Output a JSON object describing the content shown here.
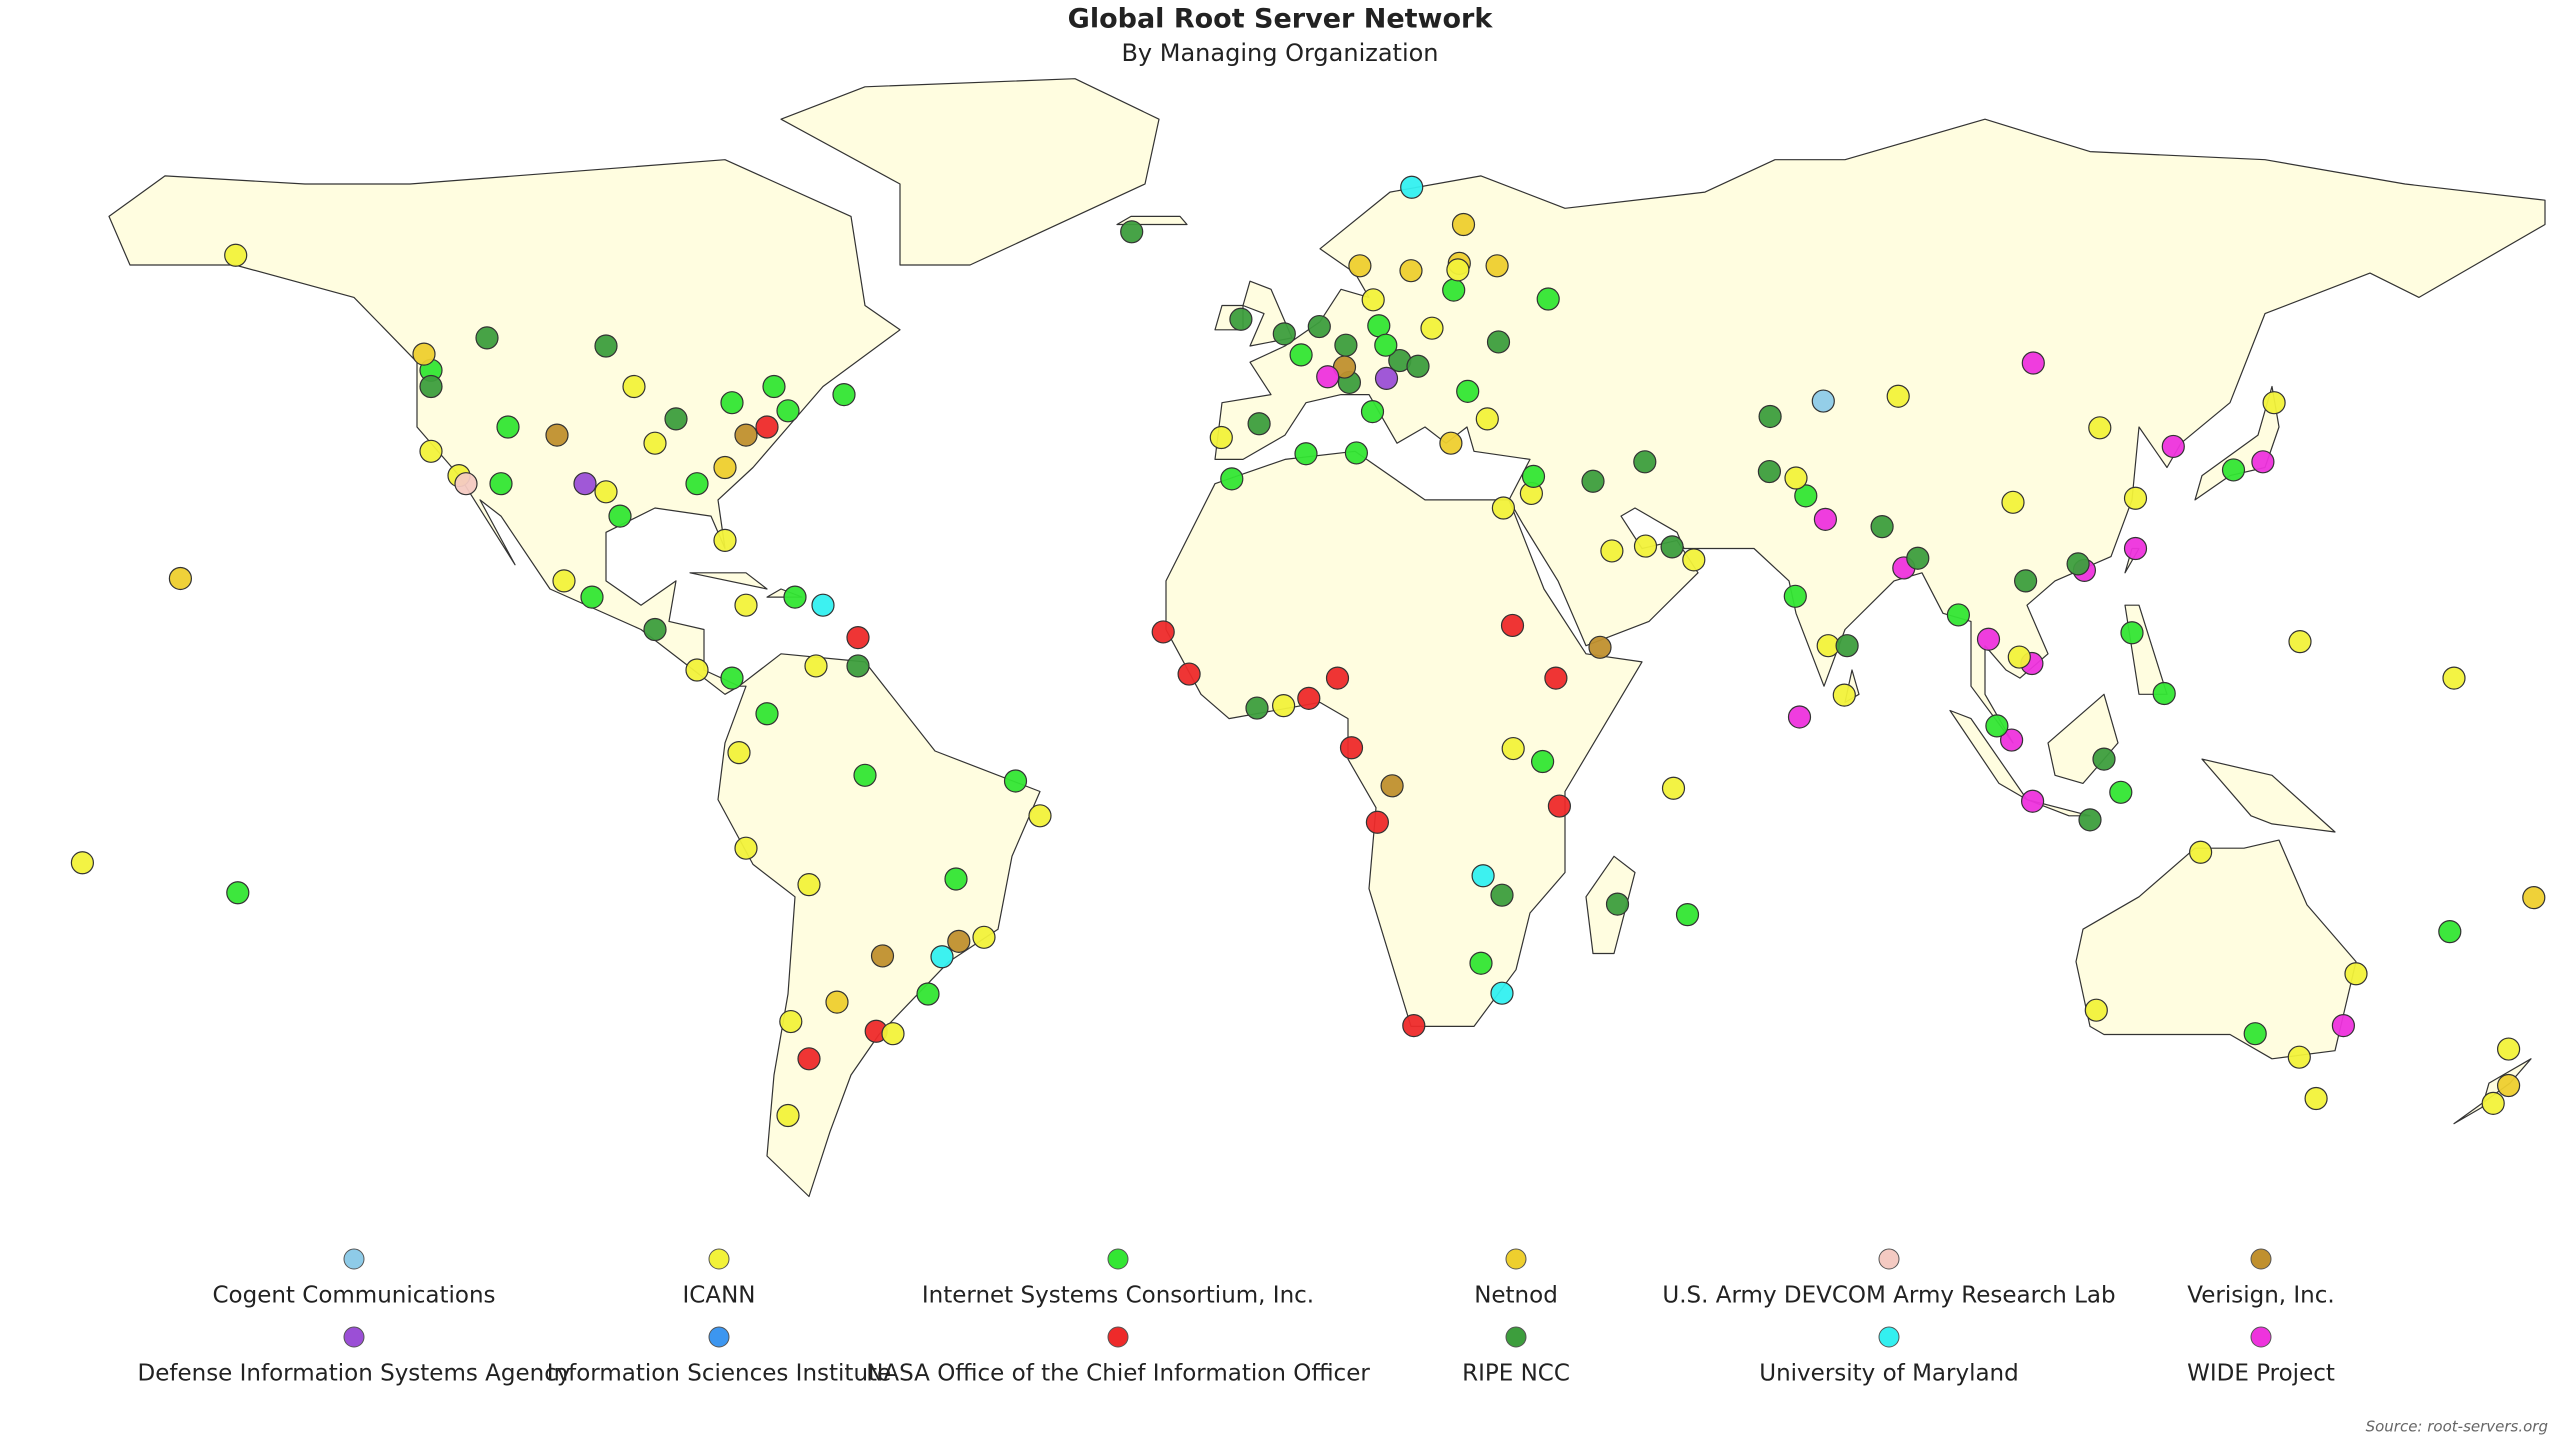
{
  "title": "Global Root Server Network",
  "subtitle": "By Managing Organization",
  "source": "Source: root-servers.org",
  "organizations": [
    {
      "name": "Cogent Communications",
      "color": "#8ecbe8"
    },
    {
      "name": "ICANN",
      "color": "#f2f23a"
    },
    {
      "name": "Internet Systems Consortium, Inc.",
      "color": "#33e633"
    },
    {
      "name": "Netnod",
      "color": "#eecf2e"
    },
    {
      "name": "U.S. Army DEVCOM Army Research Lab",
      "color": "#f4cac2"
    },
    {
      "name": "Verisign, Inc.",
      "color": "#c0902e"
    },
    {
      "name": "Defense Information Systems Agency",
      "color": "#9b4fd6"
    },
    {
      "name": "Information Sciences Institute",
      "color": "#3c96f0"
    },
    {
      "name": "NASA Office of the Chief Information Officer",
      "color": "#ee2a2a"
    },
    {
      "name": "RIPE NCC",
      "color": "#3d9e3d"
    },
    {
      "name": "University of Maryland",
      "color": "#33f0f0"
    },
    {
      "name": "WIDE Project",
      "color": "#ee33dd"
    }
  ],
  "sites": [
    {
      "lon": -122,
      "lat": 37,
      "org": 1
    },
    {
      "lon": -118,
      "lat": 34,
      "org": 1
    },
    {
      "lon": -122,
      "lat": 47,
      "org": 2
    },
    {
      "lon": -112,
      "lat": 33,
      "org": 2
    },
    {
      "lon": -104,
      "lat": 39,
      "org": 5
    },
    {
      "lon": -97,
      "lat": 32,
      "org": 1
    },
    {
      "lon": -95,
      "lat": 29,
      "org": 2
    },
    {
      "lon": -90,
      "lat": 38,
      "org": 1
    },
    {
      "lon": -87,
      "lat": 41,
      "org": 9
    },
    {
      "lon": -84,
      "lat": 33,
      "org": 2
    },
    {
      "lon": -80,
      "lat": 26,
      "org": 1
    },
    {
      "lon": -77,
      "lat": 39,
      "org": 5
    },
    {
      "lon": -74,
      "lat": 40,
      "org": 8
    },
    {
      "lon": -71,
      "lat": 42,
      "org": 2
    },
    {
      "lon": -93,
      "lat": 45,
      "org": 1
    },
    {
      "lon": -111,
      "lat": 40,
      "org": 2
    },
    {
      "lon": -80,
      "lat": 35,
      "org": 3
    },
    {
      "lon": -117,
      "lat": 33,
      "org": 4
    },
    {
      "lon": -122,
      "lat": 45,
      "org": 9
    },
    {
      "lon": -100,
      "lat": 33,
      "org": 6
    },
    {
      "lon": -79,
      "lat": 43,
      "org": 2
    },
    {
      "lon": -123,
      "lat": 49,
      "org": 3
    },
    {
      "lon": -114,
      "lat": 51,
      "org": 9
    },
    {
      "lon": -97,
      "lat": 50,
      "org": 9
    },
    {
      "lon": -73,
      "lat": 45,
      "org": 2
    },
    {
      "lon": -63,
      "lat": 44,
      "org": 2
    },
    {
      "lon": -149.9,
      "lat": 61.2,
      "org": 1
    },
    {
      "lon": -99,
      "lat": 19,
      "org": 2
    },
    {
      "lon": -103,
      "lat": 21,
      "org": 1
    },
    {
      "lon": -90,
      "lat": 15,
      "org": 9
    },
    {
      "lon": -84,
      "lat": 10,
      "org": 1
    },
    {
      "lon": -79,
      "lat": 9,
      "org": 2
    },
    {
      "lon": -66,
      "lat": 18,
      "org": 10
    },
    {
      "lon": -77,
      "lat": 18,
      "org": 1
    },
    {
      "lon": -70,
      "lat": 19,
      "org": 2
    },
    {
      "lon": -61,
      "lat": 14,
      "org": 8
    },
    {
      "lon": -61,
      "lat": 10.5,
      "org": 9
    },
    {
      "lon": -74,
      "lat": 4.6,
      "org": 2
    },
    {
      "lon": -67,
      "lat": 10.5,
      "org": 1
    },
    {
      "lon": -78,
      "lat": -0.2,
      "org": 1
    },
    {
      "lon": -77,
      "lat": -12,
      "org": 1
    },
    {
      "lon": -68,
      "lat": -16.5,
      "org": 1
    },
    {
      "lon": -47,
      "lat": -15.8,
      "org": 2
    },
    {
      "lon": -43,
      "lat": -23,
      "org": 1
    },
    {
      "lon": -46.6,
      "lat": -23.5,
      "org": 5
    },
    {
      "lon": -49,
      "lat": -25.4,
      "org": 10
    },
    {
      "lon": -51,
      "lat": -30,
      "org": 2
    },
    {
      "lon": -58.4,
      "lat": -34.6,
      "org": 8
    },
    {
      "lon": -70.6,
      "lat": -33.4,
      "org": 1
    },
    {
      "lon": -56,
      "lat": -34.9,
      "org": 1
    },
    {
      "lon": -38.5,
      "lat": -3.7,
      "org": 2
    },
    {
      "lon": -35,
      "lat": -8,
      "org": 1
    },
    {
      "lon": -60,
      "lat": -3,
      "org": 2
    },
    {
      "lon": -57.5,
      "lat": -25.3,
      "org": 5
    },
    {
      "lon": -68,
      "lat": -38,
      "org": 8
    },
    {
      "lon": -71,
      "lat": -45,
      "org": 1
    },
    {
      "lon": -64,
      "lat": -31,
      "org": 3
    },
    {
      "lon": -0.1,
      "lat": 51.5,
      "org": 9
    },
    {
      "lon": 2.3,
      "lat": 48.9,
      "org": 2
    },
    {
      "lon": 4.9,
      "lat": 52.4,
      "org": 9
    },
    {
      "lon": 8.7,
      "lat": 50.1,
      "org": 9
    },
    {
      "lon": 13.4,
      "lat": 52.5,
      "org": 2
    },
    {
      "lon": 18,
      "lat": 59.3,
      "org": 3
    },
    {
      "lon": 10.7,
      "lat": 59.9,
      "org": 3
    },
    {
      "lon": 24.9,
      "lat": 60.2,
      "org": 3
    },
    {
      "lon": 12.6,
      "lat": 55.7,
      "org": 1
    },
    {
      "lon": 16.4,
      "lat": 48.2,
      "org": 9
    },
    {
      "lon": 14.4,
      "lat": 50.1,
      "org": 2
    },
    {
      "lon": 21,
      "lat": 52.2,
      "org": 1
    },
    {
      "lon": 19,
      "lat": 47.5,
      "org": 9
    },
    {
      "lon": 12.5,
      "lat": 41.9,
      "org": 2
    },
    {
      "lon": 9.2,
      "lat": 45.5,
      "org": 9
    },
    {
      "lon": -3.7,
      "lat": 40.4,
      "org": 9
    },
    {
      "lon": -9.1,
      "lat": 38.7,
      "org": 1
    },
    {
      "lon": 8.5,
      "lat": 47.4,
      "org": 5
    },
    {
      "lon": 6.1,
      "lat": 46.2,
      "org": 11
    },
    {
      "lon": 26.1,
      "lat": 44.4,
      "org": 2
    },
    {
      "lon": 23.7,
      "lat": 38,
      "org": 3
    },
    {
      "lon": 28.9,
      "lat": 41,
      "org": 1
    },
    {
      "lon": 30.5,
      "lat": 50.5,
      "org": 9
    },
    {
      "lon": 37.6,
      "lat": 55.8,
      "org": 2
    },
    {
      "lon": 30.3,
      "lat": 59.9,
      "org": 3
    },
    {
      "lon": 24.1,
      "lat": 56.9,
      "org": 2
    },
    {
      "lon": -6.3,
      "lat": 53.3,
      "org": 9
    },
    {
      "lon": -21.9,
      "lat": 64.1,
      "org": 9
    },
    {
      "lon": 18.1,
      "lat": 69.6,
      "org": 10
    },
    {
      "lon": 25.5,
      "lat": 65,
      "org": 3
    },
    {
      "lon": 14.5,
      "lat": 46,
      "org": 6
    },
    {
      "lon": 24.7,
      "lat": 59.4,
      "org": 1
    },
    {
      "lon": -7.6,
      "lat": 33.6,
      "org": 2
    },
    {
      "lon": 3,
      "lat": 36.7,
      "org": 2
    },
    {
      "lon": 10.2,
      "lat": 36.8,
      "org": 2
    },
    {
      "lon": 31.2,
      "lat": 30,
      "org": 1
    },
    {
      "lon": -17.4,
      "lat": 14.7,
      "org": 8
    },
    {
      "lon": -13.7,
      "lat": 9.5,
      "org": 8
    },
    {
      "lon": -4,
      "lat": 5.3,
      "org": 9
    },
    {
      "lon": 3.4,
      "lat": 6.5,
      "org": 8
    },
    {
      "lon": -0.2,
      "lat": 5.6,
      "org": 1
    },
    {
      "lon": 7.5,
      "lat": 9,
      "org": 8
    },
    {
      "lon": 32.5,
      "lat": 15.5,
      "org": 8
    },
    {
      "lon": 38.7,
      "lat": 9,
      "org": 8
    },
    {
      "lon": 36.8,
      "lat": -1.3,
      "org": 2
    },
    {
      "lon": 39.2,
      "lat": -6.8,
      "org": 8
    },
    {
      "lon": 32.6,
      "lat": 0.3,
      "org": 1
    },
    {
      "lon": 15.3,
      "lat": -4.3,
      "org": 5
    },
    {
      "lon": 13.2,
      "lat": -8.8,
      "org": 8
    },
    {
      "lon": 28.3,
      "lat": -15.4,
      "org": 10
    },
    {
      "lon": 31,
      "lat": -17.8,
      "org": 9
    },
    {
      "lon": 28,
      "lat": -26.2,
      "org": 2
    },
    {
      "lon": 18.4,
      "lat": -33.9,
      "org": 8
    },
    {
      "lon": 31,
      "lat": -29.9,
      "org": 10
    },
    {
      "lon": 47.5,
      "lat": -18.9,
      "org": 9
    },
    {
      "lon": 57.5,
      "lat": -20.2,
      "org": 2
    },
    {
      "lon": 55.5,
      "lat": -4.6,
      "org": 1
    },
    {
      "lon": 9.5,
      "lat": 0.4,
      "org": 8
    },
    {
      "lon": 35.2,
      "lat": 31.8,
      "org": 1
    },
    {
      "lon": 35.5,
      "lat": 33.9,
      "org": 2
    },
    {
      "lon": 44,
      "lat": 33.3,
      "org": 9
    },
    {
      "lon": 51.4,
      "lat": 35.7,
      "org": 9
    },
    {
      "lon": 51.5,
      "lat": 25.3,
      "org": 1
    },
    {
      "lon": 55.3,
      "lat": 25.2,
      "org": 9
    },
    {
      "lon": 46.7,
      "lat": 24.7,
      "org": 1
    },
    {
      "lon": 58.4,
      "lat": 23.6,
      "org": 1
    },
    {
      "lon": 45,
      "lat": 12.8,
      "org": 5
    },
    {
      "lon": 69.2,
      "lat": 34.5,
      "org": 9
    },
    {
      "lon": 74.4,
      "lat": 31.5,
      "org": 2
    },
    {
      "lon": 73,
      "lat": 33.7,
      "org": 1
    },
    {
      "lon": 77.2,
      "lat": 28.6,
      "org": 11
    },
    {
      "lon": 72.9,
      "lat": 19.1,
      "org": 2
    },
    {
      "lon": 77.6,
      "lat": 13,
      "org": 1
    },
    {
      "lon": 80.3,
      "lat": 13,
      "org": 9
    },
    {
      "lon": 88.4,
      "lat": 22.6,
      "org": 11
    },
    {
      "lon": 90.4,
      "lat": 23.8,
      "org": 9
    },
    {
      "lon": 85.3,
      "lat": 27.7,
      "org": 9
    },
    {
      "lon": 79.9,
      "lat": 6.9,
      "org": 1
    },
    {
      "lon": 100.5,
      "lat": 13.8,
      "org": 11
    },
    {
      "lon": 106.7,
      "lat": 10.8,
      "org": 11
    },
    {
      "lon": 105.8,
      "lat": 21,
      "org": 9
    },
    {
      "lon": 103.8,
      "lat": 1.35,
      "org": 11
    },
    {
      "lon": 101.7,
      "lat": 3.1,
      "org": 2
    },
    {
      "lon": 106.8,
      "lat": -6.2,
      "org": 11
    },
    {
      "lon": 115,
      "lat": -8.5,
      "org": 9
    },
    {
      "lon": 121,
      "lat": 14.6,
      "org": 2
    },
    {
      "lon": 114.2,
      "lat": 22.3,
      "org": 11
    },
    {
      "lon": 121.5,
      "lat": 25,
      "org": 11
    },
    {
      "lon": 116.4,
      "lat": 39.9,
      "org": 1
    },
    {
      "lon": 121.5,
      "lat": 31.2,
      "org": 1
    },
    {
      "lon": 126.9,
      "lat": 37.6,
      "org": 11
    },
    {
      "lon": 139.7,
      "lat": 35.7,
      "org": 11
    },
    {
      "lon": 135.5,
      "lat": 34.7,
      "org": 2
    },
    {
      "lon": 141.3,
      "lat": 43,
      "org": 1
    },
    {
      "lon": 106.9,
      "lat": 47.9,
      "org": 11
    },
    {
      "lon": 76.9,
      "lat": 43.2,
      "org": 0
    },
    {
      "lon": 69.3,
      "lat": 41.3,
      "org": 9
    },
    {
      "lon": 87.6,
      "lat": 43.8,
      "org": 1
    },
    {
      "lon": 104,
      "lat": 30.7,
      "org": 1
    },
    {
      "lon": 113.3,
      "lat": 23.1,
      "org": 9
    },
    {
      "lon": 73.5,
      "lat": 4.2,
      "org": 11
    },
    {
      "lon": 96.2,
      "lat": 16.8,
      "org": 2
    },
    {
      "lon": 104.9,
      "lat": 11.6,
      "org": 1
    },
    {
      "lon": 125.6,
      "lat": 7.1,
      "org": 2
    },
    {
      "lon": 119.4,
      "lat": -5.1,
      "org": 2
    },
    {
      "lon": 117,
      "lat": -1,
      "org": 9
    },
    {
      "lon": 151.2,
      "lat": -33.9,
      "org": 11
    },
    {
      "lon": 144.9,
      "lat": -37.8,
      "org": 1
    },
    {
      "lon": 153,
      "lat": -27.5,
      "org": 1
    },
    {
      "lon": 115.9,
      "lat": -32,
      "org": 1
    },
    {
      "lon": 138.6,
      "lat": -34.9,
      "org": 2
    },
    {
      "lon": 147.3,
      "lat": -42.9,
      "org": 1
    },
    {
      "lon": 174.8,
      "lat": -41.3,
      "org": 3
    },
    {
      "lon": 174.8,
      "lat": -36.8,
      "org": 1
    },
    {
      "lon": 172.6,
      "lat": -43.5,
      "org": 1
    },
    {
      "lon": 130.8,
      "lat": -12.5,
      "org": 1
    },
    {
      "lon": 178.4,
      "lat": -18.1,
      "org": 3
    },
    {
      "lon": 166.4,
      "lat": -22.3,
      "org": 2
    },
    {
      "lon": -157.8,
      "lat": 21.3,
      "org": 3
    },
    {
      "lon": -149.6,
      "lat": -17.5,
      "org": 2
    },
    {
      "lon": -171.8,
      "lat": -13.8,
      "org": 1
    },
    {
      "lon": 167,
      "lat": 9,
      "org": 1
    },
    {
      "lon": 145,
      "lat": 13.5,
      "org": 1
    }
  ]
}
